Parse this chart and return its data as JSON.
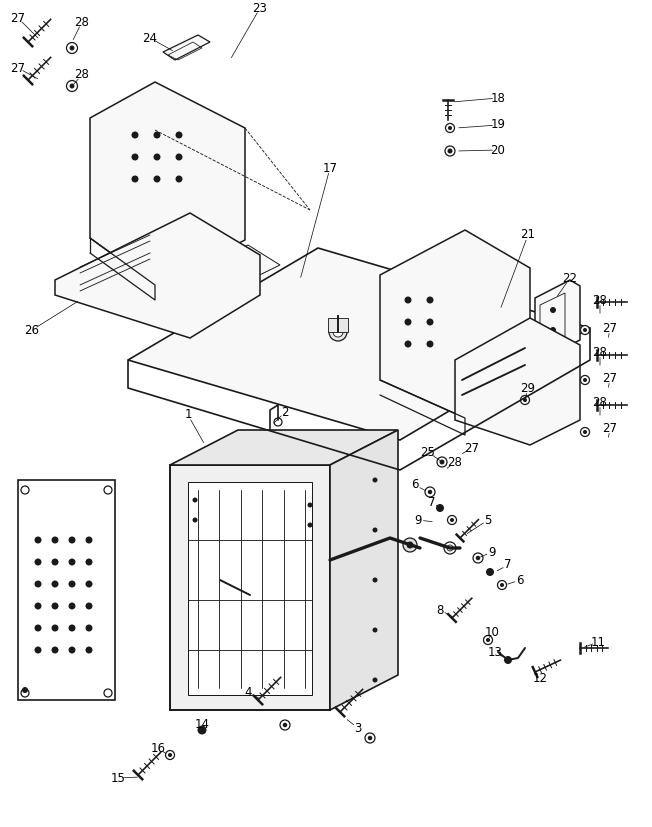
{
  "background_color": "#ffffff",
  "line_color": "#1a1a1a",
  "text_color": "#000000",
  "fig_width": 6.52,
  "fig_height": 8.27,
  "dpi": 100,
  "callouts": [
    [
      "27",
      38,
      18
    ],
    [
      "28",
      85,
      28
    ],
    [
      "24",
      155,
      42
    ],
    [
      "23",
      265,
      10
    ],
    [
      "27",
      28,
      68
    ],
    [
      "28",
      85,
      75
    ],
    [
      "26",
      48,
      355
    ],
    [
      "17",
      340,
      175
    ],
    [
      "18",
      495,
      100
    ],
    [
      "19",
      495,
      125
    ],
    [
      "20",
      495,
      148
    ],
    [
      "21",
      525,
      238
    ],
    [
      "22",
      565,
      280
    ],
    [
      "28",
      595,
      302
    ],
    [
      "27",
      605,
      328
    ],
    [
      "28",
      595,
      352
    ],
    [
      "27",
      605,
      378
    ],
    [
      "29",
      538,
      390
    ],
    [
      "28",
      595,
      402
    ],
    [
      "27",
      605,
      428
    ],
    [
      "1",
      200,
      418
    ],
    [
      "2",
      290,
      418
    ],
    [
      "25",
      430,
      462
    ],
    [
      "6",
      415,
      492
    ],
    [
      "7",
      432,
      510
    ],
    [
      "28",
      460,
      470
    ],
    [
      "27",
      478,
      455
    ],
    [
      "9",
      430,
      525
    ],
    [
      "5",
      490,
      525
    ],
    [
      "9",
      498,
      558
    ],
    [
      "7",
      512,
      572
    ],
    [
      "6",
      525,
      587
    ],
    [
      "8",
      470,
      618
    ],
    [
      "10",
      502,
      638
    ],
    [
      "13",
      508,
      658
    ],
    [
      "12",
      555,
      685
    ],
    [
      "11",
      602,
      648
    ],
    [
      "4",
      278,
      702
    ],
    [
      "3",
      375,
      735
    ],
    [
      "14",
      215,
      730
    ],
    [
      "16",
      165,
      752
    ],
    [
      "15",
      130,
      782
    ]
  ]
}
